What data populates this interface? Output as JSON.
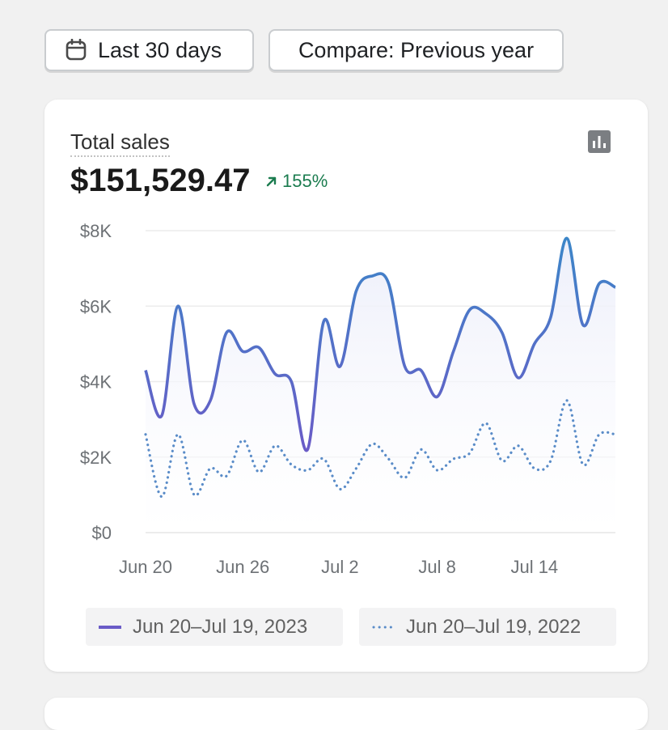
{
  "toolbar": {
    "date_range_label": "Last 30 days",
    "compare_label": "Compare: Previous year",
    "calendar_icon": "calendar-icon"
  },
  "card": {
    "metric_label": "Total sales",
    "metric_value": "$151,529.47",
    "change_percent": "155%",
    "change_direction": "up",
    "chart_type_icon": "bar-chart-icon"
  },
  "chart_data": {
    "type": "line",
    "x": [
      "Jun 20",
      "Jun 21",
      "Jun 22",
      "Jun 23",
      "Jun 24",
      "Jun 25",
      "Jun 26",
      "Jun 27",
      "Jun 28",
      "Jun 29",
      "Jun 30",
      "Jul 1",
      "Jul 2",
      "Jul 3",
      "Jul 4",
      "Jul 5",
      "Jul 6",
      "Jul 7",
      "Jul 8",
      "Jul 9",
      "Jul 10",
      "Jul 11",
      "Jul 12",
      "Jul 13",
      "Jul 14",
      "Jul 15",
      "Jul 16",
      "Jul 17",
      "Jul 18",
      "Jul 19"
    ],
    "x_tick_labels": [
      "Jun 20",
      "Jun 26",
      "Jul 2",
      "Jul 8",
      "Jul 14"
    ],
    "y_tick_labels": [
      "$0",
      "$2K",
      "$4K",
      "$6K",
      "$8K"
    ],
    "ylim": [
      0,
      8000
    ],
    "grid": true,
    "legend_position": "bottom",
    "series": [
      {
        "name": "Jun 20–Jul 19, 2023",
        "style": "solid",
        "color": "#4d70b8",
        "values": [
          4300,
          3100,
          6000,
          3400,
          3500,
          5300,
          4800,
          4900,
          4200,
          4000,
          2200,
          5600,
          4400,
          6400,
          6800,
          6600,
          4400,
          4300,
          3600,
          4800,
          5900,
          5800,
          5300,
          4100,
          5000,
          5700,
          7800,
          5500,
          6600,
          6500
        ]
      },
      {
        "name": "Jun 20–Jul 19, 2022",
        "style": "dotted",
        "color": "#5a8cc8",
        "values": [
          2600,
          950,
          2600,
          1000,
          1700,
          1500,
          2450,
          1600,
          2300,
          1800,
          1650,
          1950,
          1150,
          1700,
          2350,
          1950,
          1450,
          2200,
          1650,
          1950,
          2100,
          2900,
          1900,
          2300,
          1700,
          1900,
          3500,
          1800,
          2600,
          2600
        ]
      }
    ]
  }
}
